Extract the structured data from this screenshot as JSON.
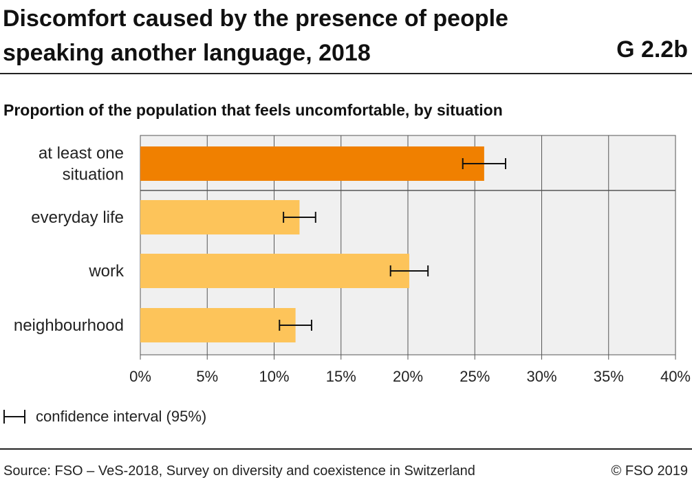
{
  "header": {
    "title": "Discomfort caused by the presence of people speaking another language, 2018",
    "code": "G 2.2b",
    "subtitle": "Proportion of the population that feels uncomfortable, by situation"
  },
  "chart_data": {
    "type": "bar",
    "orientation": "horizontal",
    "categories": [
      "at least one situation",
      "everyday life",
      "work",
      "neighbourhood"
    ],
    "values": [
      25.7,
      11.9,
      20.1,
      11.6
    ],
    "ci_low": [
      24.1,
      10.7,
      18.7,
      10.4
    ],
    "ci_high": [
      27.3,
      13.1,
      21.5,
      12.8
    ],
    "bar_colors": [
      "#f08000",
      "#fdc45a",
      "#fdc45a",
      "#fdc45a"
    ],
    "xlim": [
      0,
      40
    ],
    "xticks": [
      0,
      5,
      10,
      15,
      20,
      25,
      30,
      35,
      40
    ],
    "tick_labels": [
      "0%",
      "5%",
      "10%",
      "15%",
      "20%",
      "25%",
      "30%",
      "35%",
      "40%"
    ],
    "grid": true,
    "background": "#f0f0f0",
    "legend": {
      "label": "confidence interval (95%)",
      "position": "bottom-left"
    }
  },
  "footer": {
    "source": "Source: FSO – VeS-2018, Survey on diversity and coexistence in Switzerland",
    "copyright": "© FSO 2019"
  }
}
